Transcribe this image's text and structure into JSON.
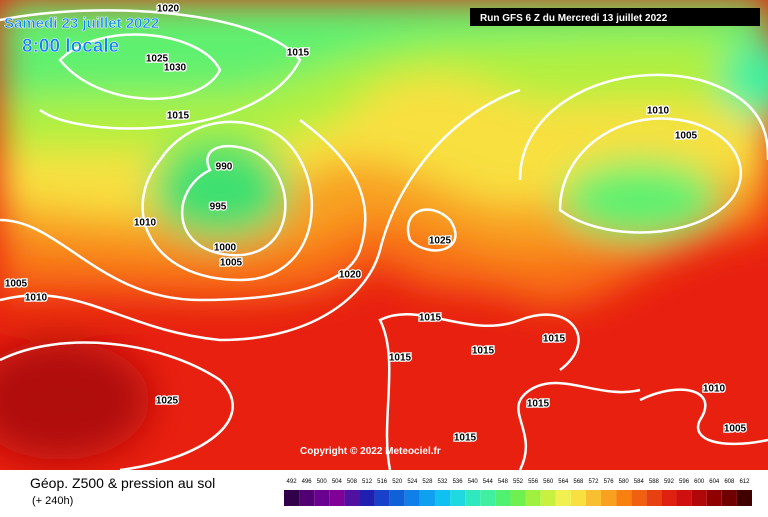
{
  "header": {
    "date": "Samedi 23 juillet 2022",
    "time": "8:00 locale",
    "run": "Run GFS 6 Z du Mercredi 13 juillet 2022"
  },
  "copyright": "Copyright © 2022 Meteociel.fr",
  "legend": {
    "title": "Géop. Z500 & pression au sol",
    "lead": "(+ 240h)",
    "scale": [
      492,
      496,
      500,
      504,
      508,
      512,
      516,
      520,
      524,
      528,
      532,
      536,
      540,
      544,
      548,
      552,
      556,
      560,
      564,
      568,
      572,
      576,
      580,
      584,
      588,
      592,
      596,
      600,
      604,
      608,
      612
    ],
    "colors": [
      "#300048",
      "#500070",
      "#6a0090",
      "#800098",
      "#5010a0",
      "#2020b0",
      "#1840c8",
      "#1060d8",
      "#1080e8",
      "#10a0f0",
      "#10c0f0",
      "#20d8e0",
      "#30e8c0",
      "#40f0a0",
      "#50f070",
      "#70f050",
      "#a0f040",
      "#c8f040",
      "#f0f050",
      "#f8e040",
      "#f8c030",
      "#f8a020",
      "#f88010",
      "#f06010",
      "#e84010",
      "#e02010",
      "#d01010",
      "#b00808",
      "#900000",
      "#700000",
      "#400000"
    ]
  },
  "isobar_labels": [
    1020,
    1025,
    1030,
    1015,
    1015,
    990,
    995,
    1010,
    1000,
    1005,
    1025,
    1020,
    1005,
    1010,
    1015,
    1015,
    1015,
    1015,
    1025,
    1015,
    1015,
    1010,
    1005,
    1010,
    1005
  ]
}
